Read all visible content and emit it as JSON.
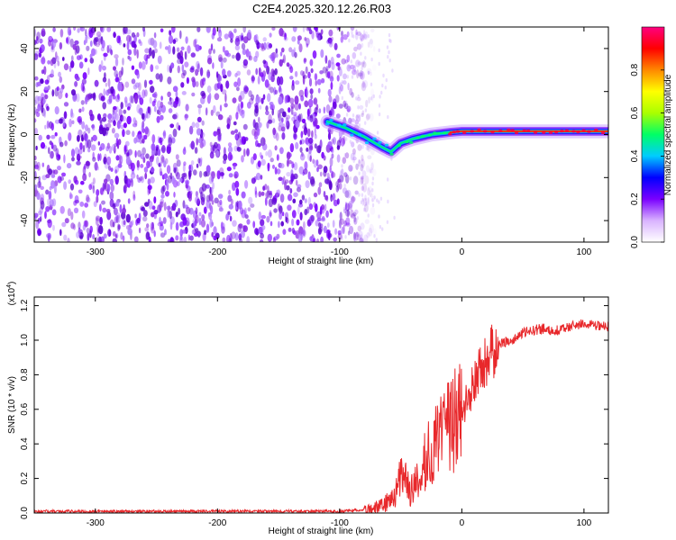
{
  "chart_data": [
    {
      "type": "heatmap",
      "title": "C2E4.2025.320.12.26.R03",
      "xlabel": "Height of straight line (km)",
      "ylabel": "Frequency (Hz)",
      "xlim": [
        -350,
        120
      ],
      "ylim": [
        -50,
        50
      ],
      "x_ticks": [
        -300,
        -200,
        -100,
        0,
        100
      ],
      "x_tick_labels": [
        "-300",
        "-200",
        "-100",
        "0",
        "100"
      ],
      "y_ticks": [
        -40,
        -20,
        0,
        20,
        40
      ],
      "y_tick_labels": [
        "-40",
        "-20",
        "0",
        "20",
        "40"
      ],
      "noise_cutoff_km": -100,
      "trace": {
        "name": "head echo Doppler trace",
        "x": [
          -110,
          -95,
          -80,
          -65,
          -58,
          -50,
          -40,
          -25,
          -10,
          0,
          20,
          50,
          80,
          100,
          120
        ],
        "y": [
          6,
          3,
          -1,
          -6,
          -8,
          -4,
          -2,
          0,
          1,
          1.5,
          1.5,
          1.5,
          1.5,
          1.5,
          1.5
        ]
      },
      "colorbar": {
        "label": "Normalized spectral amplitude",
        "range": [
          0,
          1
        ],
        "ticks": [
          0.0,
          0.2,
          0.4,
          0.6,
          0.8
        ],
        "tick_labels": [
          "0.0",
          "0.2",
          "0.4",
          "0.6",
          "0.8"
        ],
        "colors": [
          "#ffffff",
          "#d9b3ff",
          "#7a00ff",
          "#0000ff",
          "#00ccff",
          "#00ff66",
          "#aaff00",
          "#ffff00",
          "#ff8800",
          "#ff0000",
          "#ff0080"
        ]
      }
    },
    {
      "type": "line",
      "title": "",
      "xlabel": "Height of straight line (km)",
      "ylabel": "SNR (10 * v/v)",
      "multiplier_label": "(x10",
      "multiplier_exp": "4",
      "multiplier_close": ")",
      "xlim": [
        -350,
        120
      ],
      "ylim": [
        0,
        1.25
      ],
      "x_ticks": [
        -300,
        -200,
        -100,
        0,
        100
      ],
      "x_tick_labels": [
        "-300",
        "-200",
        "-100",
        "0",
        "100"
      ],
      "y_ticks": [
        0.0,
        0.2,
        0.4,
        0.6,
        0.8,
        1.0,
        1.2
      ],
      "y_tick_labels": [
        "0.0",
        "0.2",
        "0.4",
        "0.6",
        "0.8",
        "1.0",
        "1.2"
      ],
      "series": [
        {
          "name": "SNR",
          "color": "#e8282b",
          "x": [
            -350,
            -100,
            -80,
            -65,
            -55,
            -48,
            -42,
            -35,
            -30,
            -25,
            -20,
            -15,
            -10,
            -5,
            0,
            5,
            10,
            15,
            20,
            25,
            30,
            40,
            50,
            60,
            70,
            75,
            80,
            90,
            100,
            110,
            120
          ],
          "y": [
            0.01,
            0.01,
            0.02,
            0.04,
            0.1,
            0.25,
            0.12,
            0.2,
            0.3,
            0.36,
            0.4,
            0.45,
            0.5,
            0.55,
            0.58,
            0.66,
            0.75,
            0.82,
            0.88,
            0.93,
            0.97,
            1.0,
            1.04,
            1.06,
            1.07,
            1.05,
            1.06,
            1.08,
            1.1,
            1.08,
            1.08
          ]
        }
      ]
    }
  ]
}
